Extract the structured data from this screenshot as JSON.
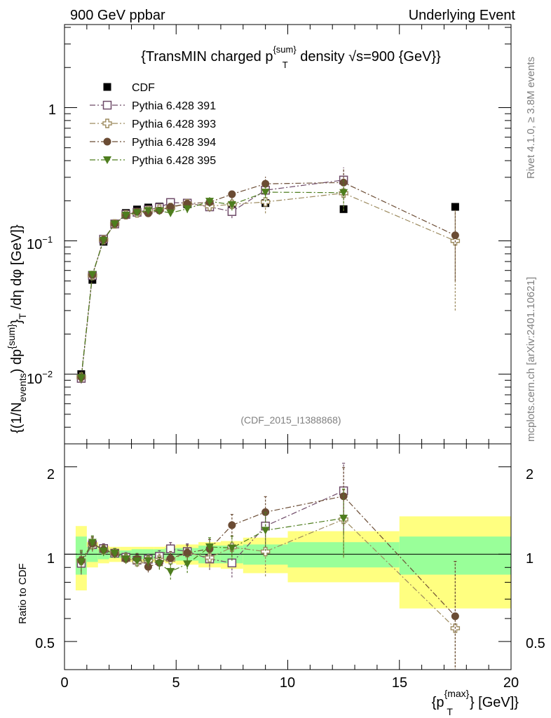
{
  "header": {
    "left": "900 GeV ppbar",
    "right": "Underlying Event"
  },
  "side": {
    "rivet": "Rivet 4.1.0, ≥ 3.8M events",
    "mcplots": "mcplots.cern.ch [arXiv:2401.10621]"
  },
  "chart_data": {
    "type": "scatter",
    "title": "{TransMIN charged p^{sum}_T density √s=900 {GeV}}",
    "title_parts": {
      "a": "{TransMIN charged p",
      "sup": "{sum}",
      "sub": "T",
      "b": " density ",
      "root": "√",
      "c": "s=900 {GeV}}"
    },
    "analysis_id": "(CDF_2015_I1388868)",
    "ylabel": "{(1/N_events) dp^{sum}_T /dη  dφ [GeV]}",
    "ylabel_parts": {
      "a": "{(1/N",
      "sub1": "events",
      "b": ") dp",
      "sup": "{sum}",
      "c": "}",
      "sub2": "T",
      "d": " /dη  dφ [GeV]}"
    },
    "ratio_ylabel": "Ratio to CDF",
    "xlabel": "{p_T^{max}} [GeV]}",
    "xlabel_parts": {
      "a": "{p",
      "sup": "{max}",
      "sub": "T",
      "b": "} [GeV]}"
    },
    "xlim": [
      0,
      20
    ],
    "ylim": [
      0.003,
      4.2
    ],
    "yscale": "log",
    "ratio_ylim": [
      0.4,
      2.4
    ],
    "ratio_yscale": "log",
    "x_ticks": [
      "0",
      "5",
      "10",
      "15",
      "20"
    ],
    "y_tick_labels": {
      "one": "1",
      "tenth_base": "10",
      "tenth_exp": "−1",
      "hundredth_base": "10",
      "hundredth_exp": "−2"
    },
    "ratio_ticks": [
      "0.5",
      "1",
      "2"
    ],
    "legend_position": "top-left",
    "series": [
      {
        "name": "CDF",
        "color": "#000000",
        "marker": "filled-square",
        "line": "none",
        "x": [
          0.75,
          1.25,
          1.75,
          2.25,
          2.75,
          3.25,
          3.75,
          4.25,
          4.75,
          5.5,
          6.5,
          7.5,
          9.0,
          12.5,
          17.5
        ],
        "y": [
          0.01,
          0.051,
          0.0985,
          0.133,
          0.162,
          0.172,
          0.178,
          0.181,
          0.186,
          0.188,
          0.187,
          0.178,
          0.192,
          0.173,
          0.18
        ],
        "band_ranges": [
          [
            0.5,
            1.0
          ],
          [
            1.0,
            1.5
          ],
          [
            1.5,
            2.0
          ],
          [
            2.0,
            2.5
          ],
          [
            2.5,
            3.0
          ],
          [
            3.0,
            3.5
          ],
          [
            3.5,
            4.0
          ],
          [
            4.0,
            4.5
          ],
          [
            4.5,
            5.0
          ],
          [
            5.0,
            6.0
          ],
          [
            6.0,
            7.0
          ],
          [
            7.0,
            8.0
          ],
          [
            8.0,
            10.0
          ],
          [
            10.0,
            15.0
          ],
          [
            15.0,
            20.0
          ]
        ],
        "stat_rel": [
          0.15,
          0.06,
          0.04,
          0.03,
          0.03,
          0.04,
          0.04,
          0.04,
          0.05,
          0.05,
          0.07,
          0.07,
          0.08,
          0.1,
          0.15
        ],
        "total_rel": [
          0.25,
          0.1,
          0.07,
          0.06,
          0.06,
          0.06,
          0.06,
          0.06,
          0.07,
          0.08,
          0.1,
          0.11,
          0.14,
          0.2,
          0.35
        ]
      },
      {
        "name": "Pythia 6.428 391",
        "color": "#6e4a68",
        "marker": "open-square",
        "line": "dash-dot",
        "x": [
          0.75,
          1.25,
          1.75,
          2.25,
          2.75,
          3.25,
          3.75,
          4.25,
          4.75,
          5.5,
          6.5,
          7.5,
          9.0,
          12.5
        ],
        "y": [
          0.0093,
          0.055,
          0.103,
          0.134,
          0.158,
          0.164,
          0.171,
          0.178,
          0.194,
          0.192,
          0.18,
          0.166,
          0.24,
          0.286
        ],
        "err": [
          0.0008,
          0.003,
          0.004,
          0.005,
          0.006,
          0.007,
          0.007,
          0.008,
          0.01,
          0.012,
          0.015,
          0.018,
          0.035,
          0.07
        ]
      },
      {
        "name": "Pythia 6.428 393",
        "color": "#9c8a5e",
        "marker": "open-cross",
        "line": "dash-dot",
        "x": [
          0.75,
          1.25,
          1.75,
          2.25,
          2.75,
          3.25,
          3.75,
          4.25,
          4.75,
          5.5,
          6.5,
          7.5,
          9.0,
          12.5,
          17.5
        ],
        "y": [
          0.0095,
          0.055,
          0.102,
          0.134,
          0.157,
          0.162,
          0.169,
          0.173,
          0.178,
          0.19,
          0.182,
          0.188,
          0.196,
          0.228,
          0.1
        ],
        "err": [
          0.0008,
          0.003,
          0.004,
          0.005,
          0.006,
          0.007,
          0.007,
          0.008,
          0.01,
          0.012,
          0.015,
          0.018,
          0.035,
          0.06,
          0.07
        ]
      },
      {
        "name": "Pythia 6.428 394",
        "color": "#6b4c34",
        "marker": "filled-circle",
        "line": "dash-dot",
        "x": [
          0.75,
          1.25,
          1.75,
          2.25,
          2.75,
          3.25,
          3.75,
          4.25,
          4.75,
          5.5,
          6.5,
          7.5,
          9.0,
          12.5,
          17.5
        ],
        "y": [
          0.0095,
          0.0555,
          0.102,
          0.134,
          0.156,
          0.166,
          0.161,
          0.169,
          0.18,
          0.19,
          0.195,
          0.224,
          0.268,
          0.274,
          0.11
        ],
        "err": [
          0.0008,
          0.003,
          0.004,
          0.005,
          0.006,
          0.007,
          0.007,
          0.008,
          0.01,
          0.012,
          0.015,
          0.02,
          0.035,
          0.07,
          0.06
        ]
      },
      {
        "name": "Pythia 6.428 395",
        "color": "#4e7d1e",
        "marker": "filled-triangle-down",
        "line": "dash-dot",
        "x": [
          0.75,
          1.25,
          1.75,
          2.25,
          2.75,
          3.25,
          3.75,
          4.25,
          4.75,
          5.5,
          6.5,
          7.5,
          9.0,
          12.5
        ],
        "y": [
          0.0094,
          0.056,
          0.101,
          0.134,
          0.156,
          0.163,
          0.169,
          0.168,
          0.162,
          0.174,
          0.198,
          0.187,
          0.232,
          0.23
        ],
        "err": [
          0.0008,
          0.003,
          0.004,
          0.005,
          0.006,
          0.007,
          0.007,
          0.008,
          0.01,
          0.012,
          0.015,
          0.018,
          0.035,
          0.06
        ]
      }
    ]
  }
}
